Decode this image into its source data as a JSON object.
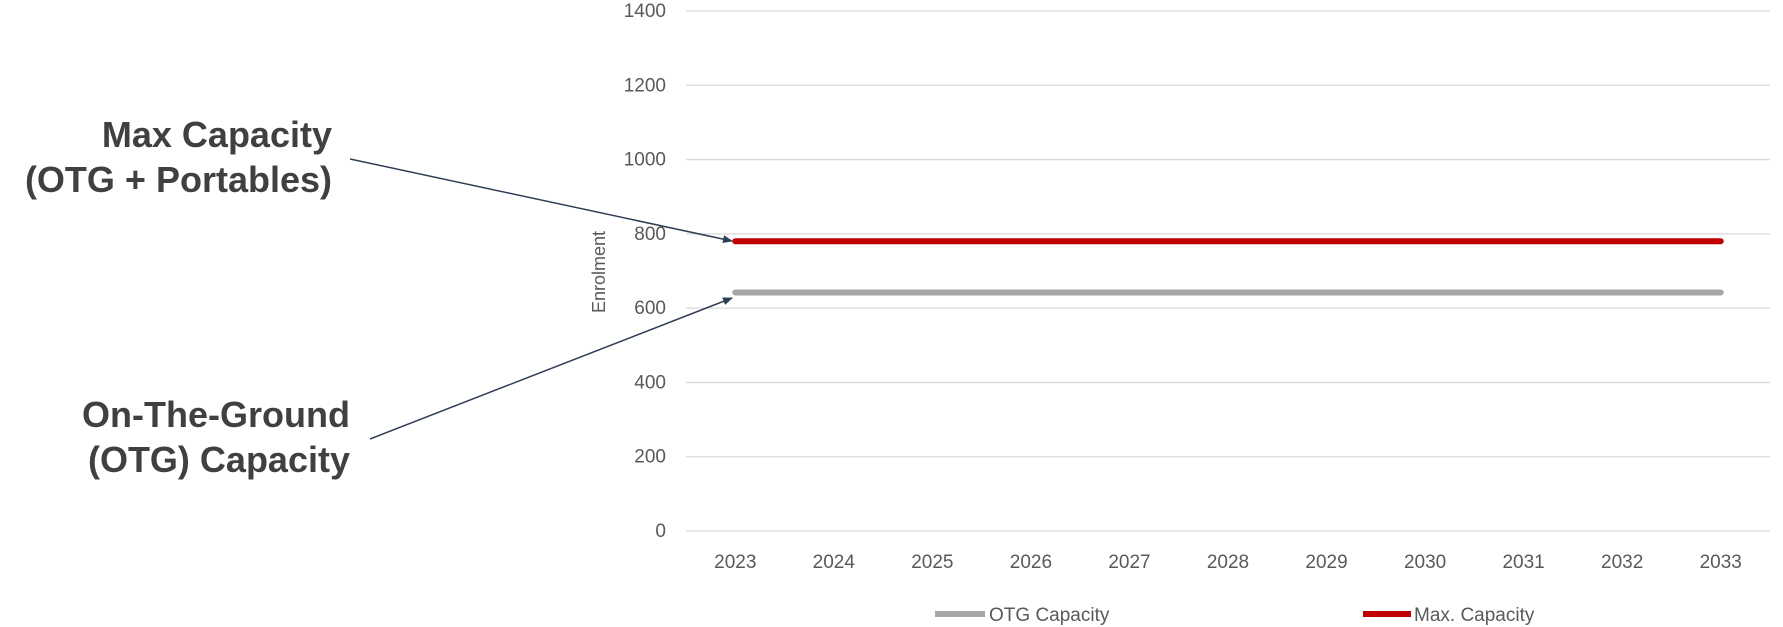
{
  "colors": {
    "otg": "#a6a6a6",
    "max": "#c00000",
    "grid": "#d9d9d9",
    "callout_text": "#404040",
    "arrow": "#2f3e55"
  },
  "callouts": {
    "max_line1": "Max Capacity",
    "max_line2": "(OTG + Portables)",
    "otg_line1": "On-The-Ground",
    "otg_line2": "(OTG) Capacity"
  },
  "chart_data": {
    "type": "line",
    "x": [
      2023,
      2024,
      2025,
      2026,
      2027,
      2028,
      2029,
      2030,
      2031,
      2032,
      2033
    ],
    "series": [
      {
        "name": "OTG Capacity",
        "values": [
          642,
          642,
          642,
          642,
          642,
          642,
          642,
          642,
          642,
          642,
          642
        ]
      },
      {
        "name": "Max. Capacity",
        "values": [
          780,
          780,
          780,
          780,
          780,
          780,
          780,
          780,
          780,
          780,
          780
        ]
      }
    ],
    "yticks": [
      0,
      200,
      400,
      600,
      800,
      1000,
      1200,
      1400
    ],
    "xlabel": "",
    "ylabel": "Enrolment",
    "ylim": [
      0,
      1400
    ],
    "grid": true,
    "legend": "bottom"
  }
}
